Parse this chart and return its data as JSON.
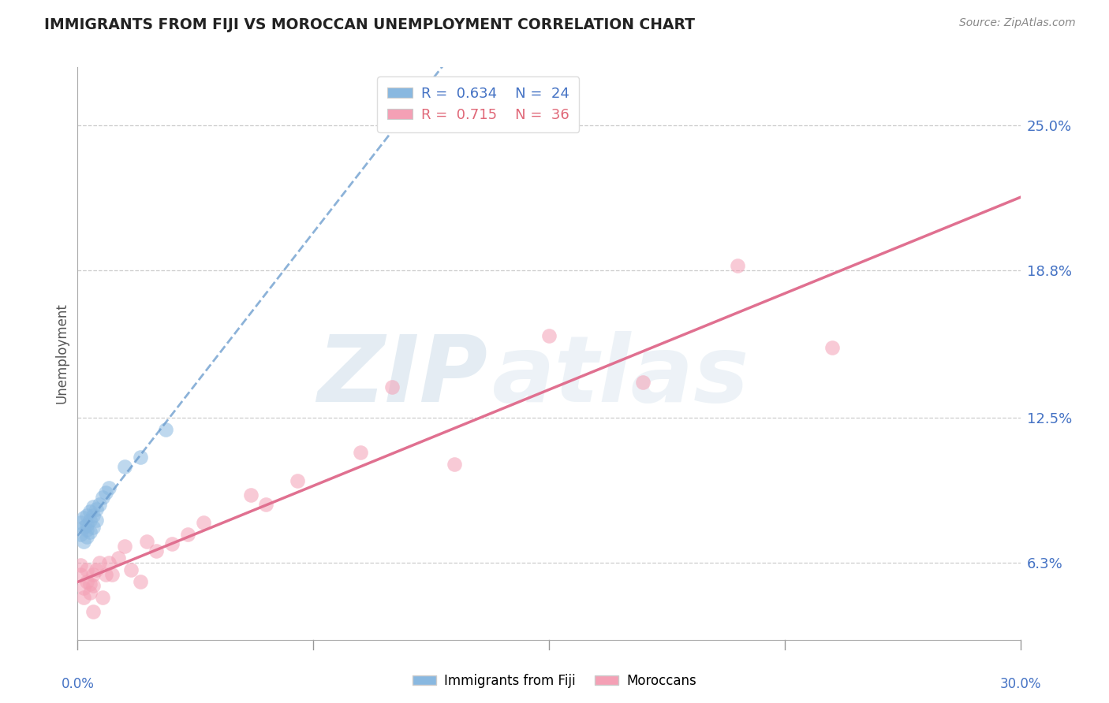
{
  "title": "IMMIGRANTS FROM FIJI VS MOROCCAN UNEMPLOYMENT CORRELATION CHART",
  "source": "Source: ZipAtlas.com",
  "ylabel": "Unemployment",
  "y_ticks": [
    0.063,
    0.125,
    0.188,
    0.25
  ],
  "y_tick_labels": [
    "6.3%",
    "12.5%",
    "18.8%",
    "25.0%"
  ],
  "x_tick_positions": [
    0.0,
    0.075,
    0.15,
    0.225,
    0.3
  ],
  "xlim": [
    0.0,
    0.3
  ],
  "ylim": [
    0.03,
    0.275
  ],
  "fiji_R": "0.634",
  "fiji_N": "24",
  "moroccan_R": "0.715",
  "moroccan_N": "36",
  "fiji_color": "#89b8e0",
  "moroccan_color": "#f4a0b5",
  "fiji_trend_color": "#6699cc",
  "moroccan_trend_color": "#e07090",
  "watermark_text": "ZIP",
  "watermark_text2": "atlas",
  "fiji_points_x": [
    0.001,
    0.001,
    0.002,
    0.002,
    0.002,
    0.003,
    0.003,
    0.003,
    0.003,
    0.004,
    0.004,
    0.004,
    0.005,
    0.005,
    0.005,
    0.006,
    0.006,
    0.007,
    0.008,
    0.009,
    0.01,
    0.015,
    0.02,
    0.028
  ],
  "fiji_points_y": [
    0.075,
    0.08,
    0.072,
    0.078,
    0.082,
    0.074,
    0.079,
    0.083,
    0.077,
    0.076,
    0.081,
    0.085,
    0.078,
    0.083,
    0.087,
    0.081,
    0.086,
    0.088,
    0.091,
    0.093,
    0.095,
    0.104,
    0.108,
    0.12
  ],
  "moroccan_points_x": [
    0.001,
    0.001,
    0.002,
    0.002,
    0.003,
    0.003,
    0.004,
    0.004,
    0.005,
    0.005,
    0.005,
    0.006,
    0.007,
    0.008,
    0.009,
    0.01,
    0.011,
    0.013,
    0.015,
    0.017,
    0.02,
    0.022,
    0.025,
    0.03,
    0.035,
    0.04,
    0.055,
    0.06,
    0.07,
    0.09,
    0.1,
    0.12,
    0.15,
    0.18,
    0.21,
    0.24
  ],
  "moroccan_points_y": [
    0.058,
    0.062,
    0.052,
    0.048,
    0.055,
    0.06,
    0.05,
    0.054,
    0.042,
    0.058,
    0.053,
    0.06,
    0.063,
    0.048,
    0.058,
    0.063,
    0.058,
    0.065,
    0.07,
    0.06,
    0.055,
    0.072,
    0.068,
    0.071,
    0.075,
    0.08,
    0.092,
    0.088,
    0.098,
    0.11,
    0.138,
    0.105,
    0.16,
    0.14,
    0.19,
    0.155
  ],
  "legend_fiji_label": "R =  0.634    N =  24",
  "legend_moroccan_label": "R =  0.715    N =  36",
  "legend_bottom_fiji": "Immigrants from Fiji",
  "legend_bottom_moroccan": "Moroccans"
}
